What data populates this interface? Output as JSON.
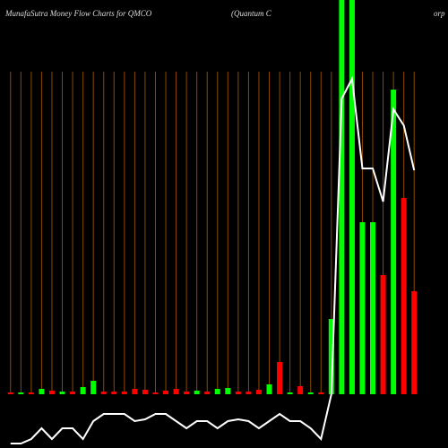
{
  "chart_data": {
    "type": "bar",
    "title": "MunafaSutra  Money Flow  Charts for QMCO",
    "subtitle": "(Quantum C",
    "subtitle_end": "orp",
    "ylim": [
      0,
      440
    ],
    "y2lim": [
      0,
      500
    ],
    "bar_values": [
      2,
      2,
      2,
      6,
      4,
      3,
      3,
      8,
      15,
      3,
      3,
      3,
      6,
      5,
      2,
      4,
      6,
      3,
      4,
      3,
      6,
      7,
      3,
      3,
      5,
      11,
      36,
      2,
      9,
      2,
      2,
      84,
      440,
      440,
      192,
      192,
      133,
      340,
      219,
      115
    ],
    "bar_colors": [
      "red",
      "green",
      "red",
      "green",
      "red",
      "green",
      "red",
      "green",
      "green",
      "red",
      "red",
      "red",
      "red",
      "red",
      "red",
      "red",
      "red",
      "red",
      "green",
      "red",
      "green",
      "green",
      "red",
      "red",
      "red",
      "green",
      "red",
      "green",
      "red",
      "green",
      "red",
      "green",
      "green",
      "green",
      "green",
      "green",
      "red",
      "green",
      "red",
      "red"
    ],
    "line_values": [
      5,
      5,
      10,
      22,
      10,
      22,
      22,
      10,
      30,
      38,
      38,
      38,
      30,
      32,
      38,
      38,
      30,
      22,
      30,
      30,
      22,
      30,
      32,
      30,
      22,
      30,
      38,
      30,
      30,
      22,
      10,
      60,
      390,
      412,
      312,
      312,
      275,
      378,
      360,
      310
    ],
    "line_color": "#ffffff",
    "gridline_color": "#8a4a00"
  }
}
